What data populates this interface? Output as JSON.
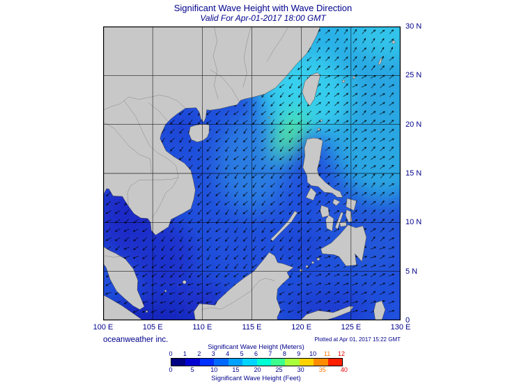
{
  "title": "Significant Wave Height with Wave Direction",
  "subtitle": "Valid For Apr-01-2017 18:00 GMT",
  "credit": "oceanweather inc.",
  "plotted_note": "Plotted at Apr 01, 2017 15:22 GMT",
  "axes": {
    "lon_ticks": [
      "100 E",
      "105 E",
      "110 E",
      "115 E",
      "120 E",
      "125 E",
      "130 E"
    ],
    "lat_ticks": [
      "30 N",
      "25 N",
      "20 N",
      "15 N",
      "10 N",
      "5 N",
      "0"
    ]
  },
  "colorbar": {
    "meters_label": "Significant Wave Height (Meters)",
    "feet_label": "Significant Wave Height (Feet)",
    "meters_ticks": [
      0,
      1,
      2,
      3,
      4,
      5,
      6,
      7,
      8,
      9,
      10,
      11,
      12
    ],
    "feet_ticks": [
      0,
      5,
      10,
      15,
      20,
      25,
      30,
      35,
      40
    ],
    "meters_tick_colors": {
      "11": "#ff7800",
      "12": "#e60000"
    },
    "feet_tick_colors": {
      "35": "#ff7800",
      "40": "#e60000"
    },
    "colors": [
      "#000082",
      "#0000d2",
      "#0030ff",
      "#0068ff",
      "#00a2ff",
      "#00d4ff",
      "#00ffd2",
      "#3cff8e",
      "#aaff3c",
      "#ffd200",
      "#ff8c00",
      "#ff1e00"
    ]
  },
  "colors": {
    "text_navy": "#00008b",
    "land_gray": "#c8c8c8",
    "ocean_base_blue": "#2050dc",
    "north_cyan": "#29b2e8",
    "peak_green": "#40e0b0",
    "dark_blue_low": "#1b2cc8"
  },
  "chart_data": {
    "type": "heatmap",
    "subtype": "geographic wave field with direction vectors",
    "field": "significant wave height",
    "units_primary": "meters",
    "units_secondary": "feet",
    "valid_time": "Apr-01-2017 18:00 GMT",
    "plotted_time": "Apr 01, 2017 15:22 GMT",
    "region": {
      "lon_min_deg_e": 100,
      "lon_max_deg_e": 130,
      "lat_min_deg_n": 0,
      "lat_max_deg_n": 30,
      "grid_interval_deg": 5
    },
    "colorbar_range_m": [
      0,
      12
    ],
    "colorbar_range_ft": [
      0,
      40
    ],
    "overlay": "wave direction arrows on ~1 degree grid over water",
    "features": [
      {
        "area": "Luzon Strait / NE of Luzon (green patch, field maximum)",
        "approx_swh_m": 6.5
      },
      {
        "area": "Northern South China Sea and Taiwan Strait",
        "approx_swh_m": 4.5
      },
      {
        "area": "Western Pacific / East China Sea (NE quadrant)",
        "approx_swh_m": 4
      },
      {
        "area": "Philippine Sea east of Luzon",
        "approx_swh_m": 3.5
      },
      {
        "area": "Central South China Sea",
        "approx_swh_m": 2.5
      },
      {
        "area": "Gulf of Thailand and Java Sea approaches",
        "approx_swh_m": 1
      },
      {
        "area": "Sulu and Celebes Seas",
        "approx_swh_m": 1.5
      }
    ],
    "wave_direction_summary": "Arrows head generally southwest across the South China Sea (NE monsoon swell); generally northeast-slanted over the western Pacific east of ~121.5E"
  }
}
